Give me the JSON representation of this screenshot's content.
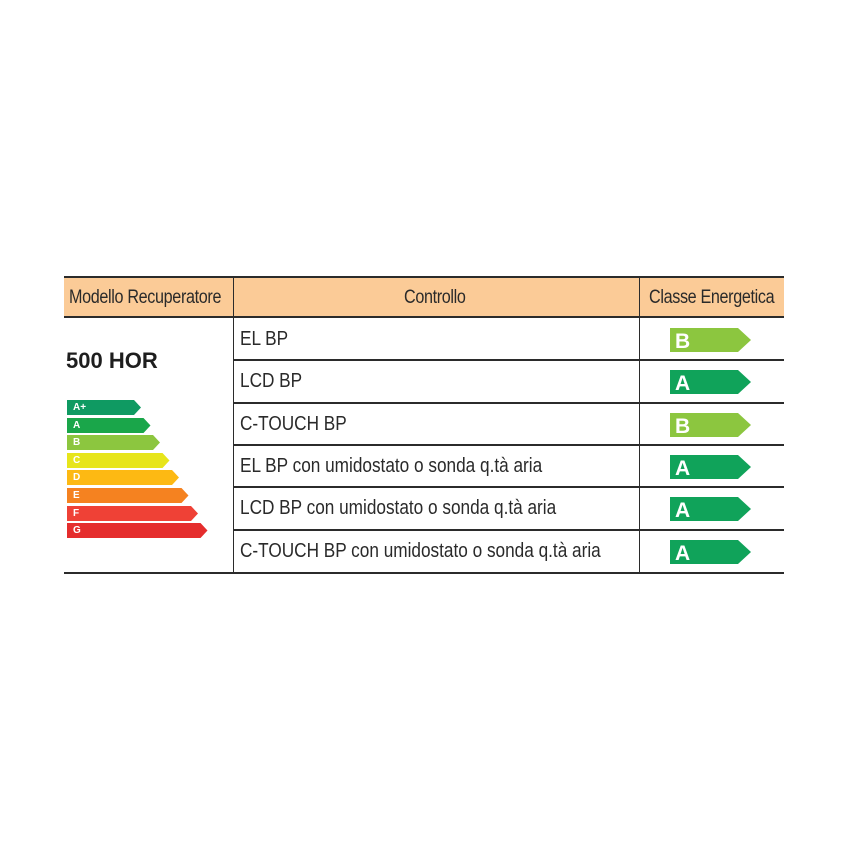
{
  "table": {
    "headers": {
      "model": "Modello Recuperatore",
      "control": "Controllo",
      "energy_class": "Classe Energetica"
    },
    "model_name": "500 HOR",
    "rows": [
      {
        "control": "EL BP",
        "class": "B",
        "color": "#8cc63f"
      },
      {
        "control": "LCD BP",
        "class": "A",
        "color": "#10a35a"
      },
      {
        "control": "C-TOUCH BP",
        "class": "B",
        "color": "#8cc63f"
      },
      {
        "control": "EL BP con umidostato o sonda q.tà aria",
        "class": "A",
        "color": "#10a35a"
      },
      {
        "control": "LCD BP con umidostato o sonda q.tà aria",
        "class": "A",
        "color": "#10a35a"
      },
      {
        "control": "C-TOUCH BP con umidostato o sonda q.tà aria",
        "class": "A",
        "color": "#10a35a"
      }
    ]
  },
  "energy_scale": [
    {
      "label": "A+",
      "color": "#0f9a62"
    },
    {
      "label": "A",
      "color": "#1aa64a"
    },
    {
      "label": "B",
      "color": "#8cc63f"
    },
    {
      "label": "C",
      "color": "#e7e51b"
    },
    {
      "label": "D",
      "color": "#fdb913"
    },
    {
      "label": "E",
      "color": "#f58220"
    },
    {
      "label": "F",
      "color": "#ef4136"
    },
    {
      "label": "G",
      "color": "#e52d2d"
    }
  ]
}
